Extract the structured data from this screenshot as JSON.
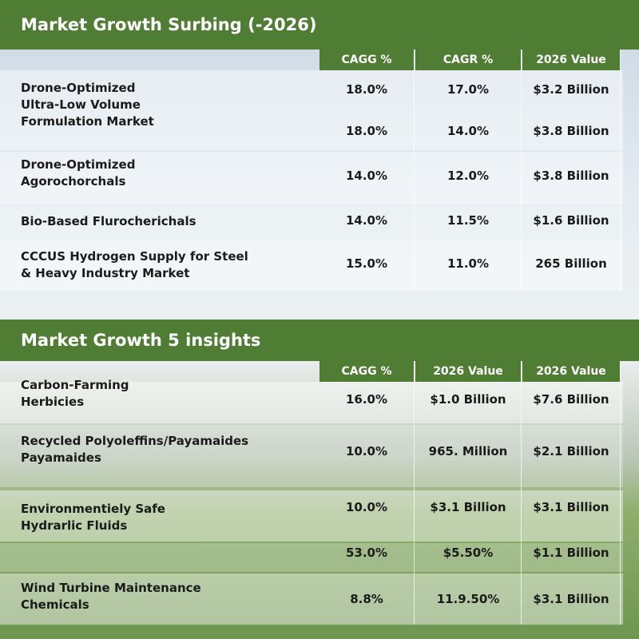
{
  "sections": [
    {
      "title": "Market Growth Surbing (-2026)",
      "columns": [
        "CAGG %",
        "CAGR %",
        "2026 Value"
      ],
      "rows": [
        {
          "label": [
            "Drone-Optimized",
            "Ultra-Low Volume",
            "Formulation Market"
          ],
          "cells": [
            "18.0%",
            "17.0%",
            "$3.2 Billion"
          ]
        },
        {
          "cells": [
            "18.0%",
            "14.0%",
            "$3.8 Billion"
          ]
        },
        {
          "label": [
            "Drone-Optimized",
            "Agorochorchals"
          ],
          "cells": [
            "14.0%",
            "12.0%",
            "$3.8 Billion"
          ]
        },
        {
          "label": [
            "Bio-Based Flurocherichals"
          ],
          "cells": [
            "14.0%",
            "11.5%",
            "$1.6 Billion"
          ]
        },
        {
          "label": [
            "CCCUS Hydrogen Supply for Steel",
            "& Heavy Industry Market"
          ],
          "cells": [
            "15.0%",
            "11.0%",
            "265 Billion"
          ]
        }
      ]
    },
    {
      "title": "Market Growth 5 insights",
      "columns": [
        "CAGG %",
        "2026 Value",
        "2026 Value"
      ],
      "rows": [
        {
          "label": [
            "Carbon-Farming",
            "Herbicies"
          ],
          "cells": [
            "16.0%",
            "$1.0 Billion",
            "$7.6 Billion"
          ]
        },
        {
          "label": [
            "Recycled Polyoleffins/Payamaides",
            "Payamaides"
          ],
          "cells": [
            "10.0%",
            "965. Million",
            "$2.1 Billion"
          ]
        },
        {
          "label": [
            "Environmentiely Safe",
            "Hydrarlic Fluids"
          ],
          "cells": [
            "10.0%",
            "$3.1 Billion",
            "$3.1 Billion"
          ]
        },
        {
          "cells": [
            "53.0%",
            "$5.50%",
            "$1.1 Billion"
          ]
        },
        {
          "label": [
            "Wind Turbine Maintenance",
            "Chemicals"
          ],
          "cells": [
            "8.8%",
            "11.9.50%",
            "$3.1 Billion"
          ]
        }
      ]
    }
  ]
}
